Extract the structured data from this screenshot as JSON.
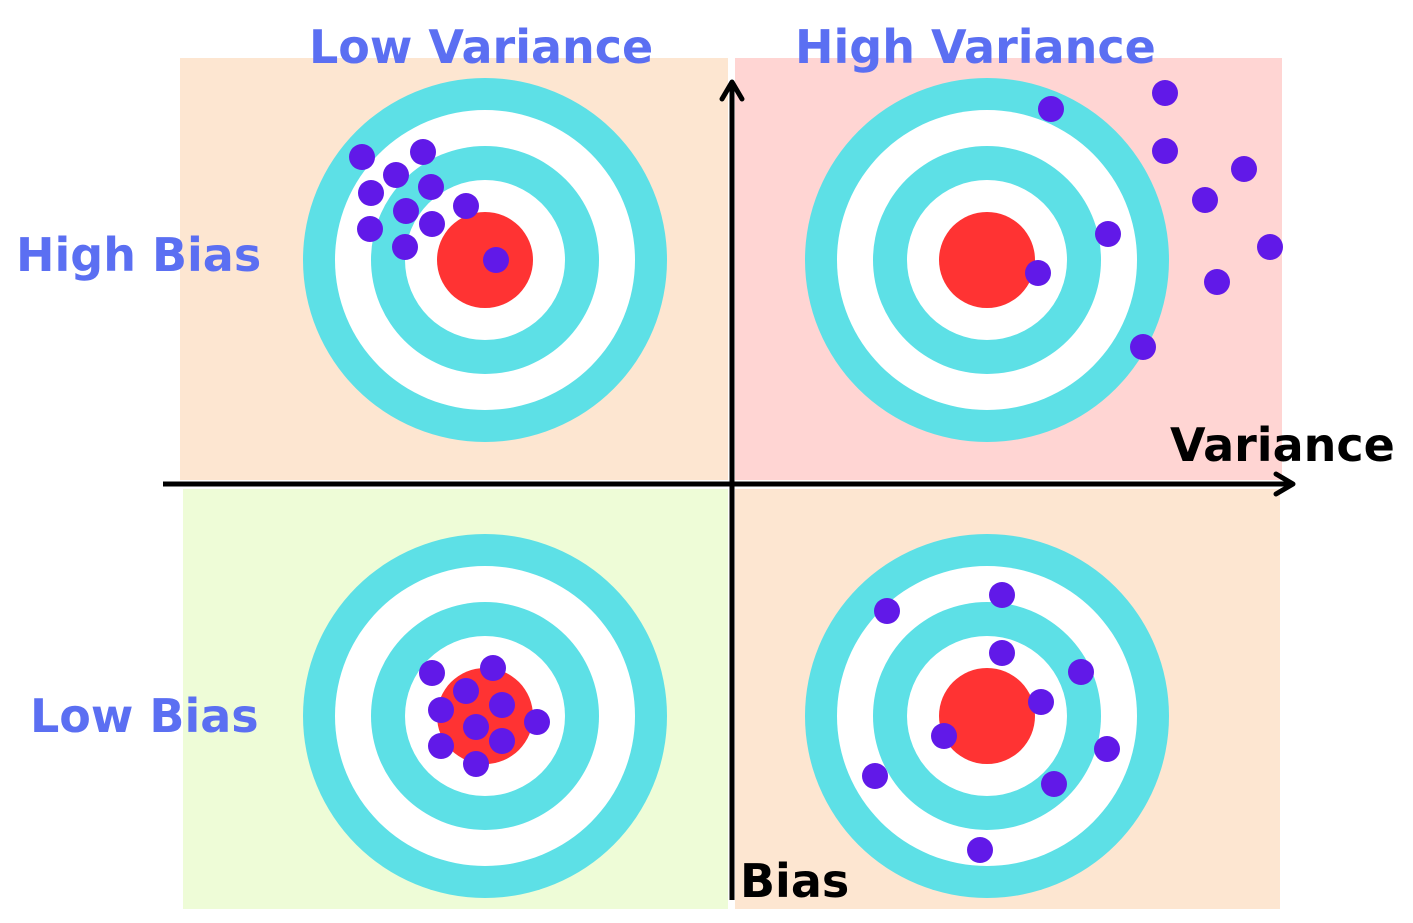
{
  "labels": {
    "col_low_variance": "Low Variance",
    "col_high_variance": "High Variance",
    "row_high_bias": "High Bias",
    "row_low_bias": "Low Bias",
    "axis_variance": "Variance",
    "axis_bias": "Bias"
  },
  "colors": {
    "label_blue": "#5b6ff2",
    "axis_black": "#000000",
    "target_ring": "#5de0e6",
    "target_white": "#ffffff",
    "target_bullseye": "#ff3333",
    "shot": "#6119e8",
    "quadrant_high_bias_low_variance": "#fde6d1",
    "quadrant_high_bias_high_variance": "#ffd5d3",
    "quadrant_low_bias_low_variance": "#eefcd7",
    "quadrant_low_bias_high_variance": "#fde6d1"
  },
  "quadrants": [
    {
      "name": "high-bias-low-variance",
      "bias": "High Bias",
      "variance": "Low Variance",
      "fill_key": "quadrant_high_bias_low_variance",
      "shot_count": 11
    },
    {
      "name": "high-bias-high-variance",
      "bias": "High Bias",
      "variance": "High Variance",
      "fill_key": "quadrant_high_bias_high_variance",
      "shot_count": 11
    },
    {
      "name": "low-bias-low-variance",
      "bias": "Low Bias",
      "variance": "Low Variance",
      "fill_key": "quadrant_low_bias_low_variance",
      "shot_count": 11
    },
    {
      "name": "low-bias-high-variance",
      "bias": "Low Bias",
      "variance": "High Variance",
      "fill_key": "quadrant_low_bias_high_variance",
      "shot_count": 11
    }
  ]
}
